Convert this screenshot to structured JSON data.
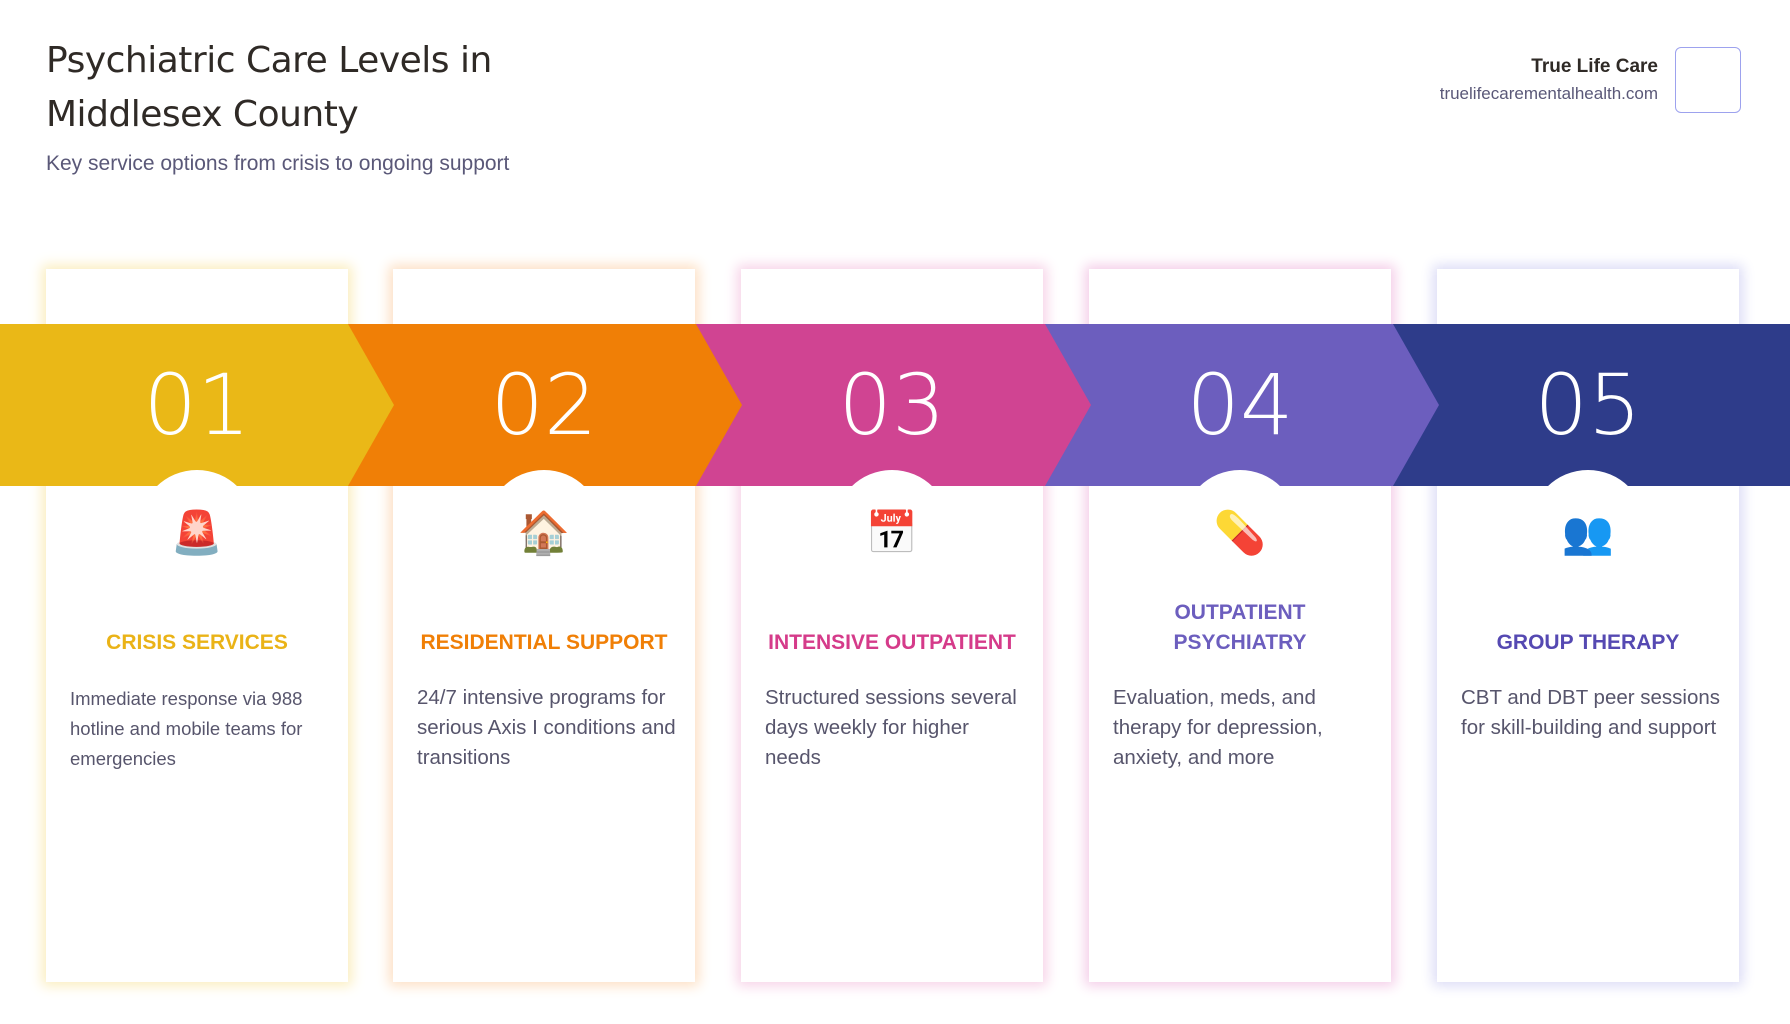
{
  "header": {
    "title": "Psychiatric Care Levels in Middlesex County",
    "subtitle": "Key service options from crisis to ongoing support"
  },
  "brand": {
    "name": "True Life Care",
    "url": "truelifecarementalhealth.com"
  },
  "steps": [
    {
      "number": "01",
      "icon": "police-light-icon",
      "emoji": "🚨",
      "title": "CRISIS SERVICES",
      "description": "Immediate response via 988 hotline and mobile teams for emergencies",
      "color": "#EAB817",
      "title_color": "#EAB317",
      "shadow": "#fbeebf"
    },
    {
      "number": "02",
      "icon": "house-icon",
      "emoji": "🏠",
      "title": "RESIDENTIAL SUPPORT",
      "description": "24/7 intensive programs for serious Axis I conditions and transitions",
      "color": "#F07F06",
      "title_color": "#F07F06",
      "shadow": "#fde0c4"
    },
    {
      "number": "03",
      "icon": "calendar-icon",
      "emoji": "📅",
      "title": "INTENSIVE OUTPATIENT",
      "description": "Structured sessions several days weekly for higher needs",
      "color": "#D04492",
      "title_color": "#D53B8A",
      "shadow": "#f7d3e8"
    },
    {
      "number": "04",
      "icon": "pill-icon",
      "emoji": "💊",
      "title": "OUTPATIENT PSYCHIATRY",
      "description": "Evaluation, meds, and therapy for depression, anxiety, and more",
      "color": "#6C5EBE",
      "title_color": "#6C5EBE",
      "shadow": "#f4cde8"
    },
    {
      "number": "05",
      "icon": "people-icon",
      "emoji": "👥",
      "title": "GROUP THERAPY",
      "description": "CBT and DBT peer sessions for skill-building and support",
      "color": "#2E3C8A",
      "title_color": "#5549B2",
      "shadow": "#dcdcf6"
    }
  ]
}
